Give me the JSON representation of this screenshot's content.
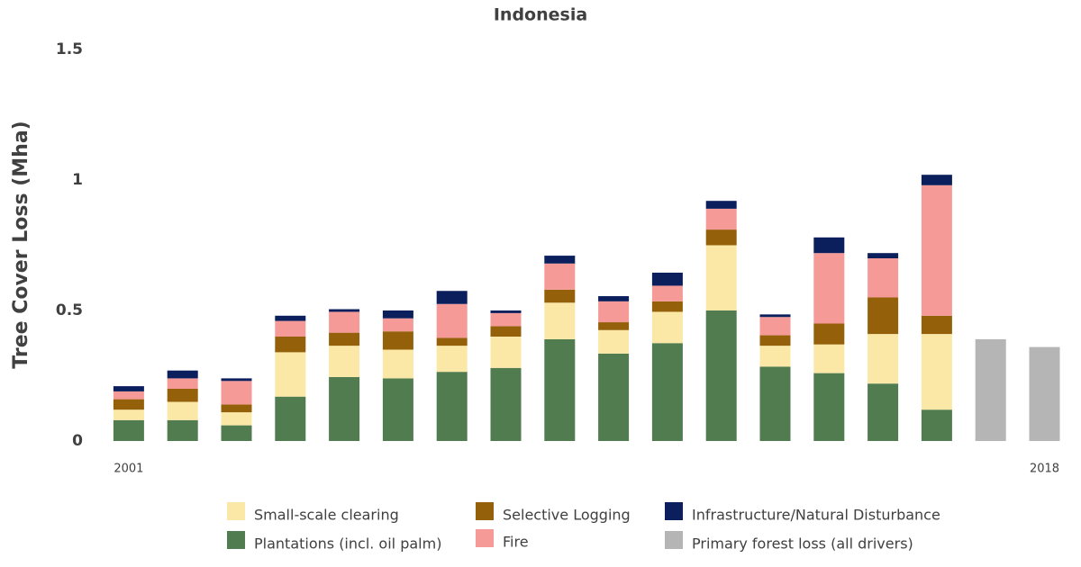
{
  "chart_data": {
    "type": "stacked_bar",
    "title": "Indonesia",
    "y_label": "Tree Cover Loss (Mha)",
    "categories": [
      "2001",
      null,
      null,
      null,
      null,
      null,
      null,
      null,
      null,
      null,
      null,
      null,
      null,
      null,
      null,
      null,
      null,
      "2018"
    ],
    "ylim": [
      0,
      1.5
    ],
    "yticks": [
      0,
      0.5,
      1,
      1.5
    ],
    "grid": false,
    "series": [
      {
        "name": "Plantations (incl. oil palm)",
        "color": "#507c4f",
        "values": [
          0.08,
          0.08,
          0.06,
          0.17,
          0.245,
          0.24,
          0.265,
          0.28,
          0.39,
          0.335,
          0.375,
          0.5,
          0.285,
          0.26,
          0.22,
          0.12,
          null,
          null
        ]
      },
      {
        "name": "Small-scale clearing",
        "color": "#fbe8a6",
        "values": [
          0.04,
          0.07,
          0.05,
          0.17,
          0.12,
          0.11,
          0.1,
          0.12,
          0.14,
          0.09,
          0.12,
          0.25,
          0.08,
          0.11,
          0.19,
          0.29,
          null,
          null
        ]
      },
      {
        "name": "Selective Logging",
        "color": "#94600a",
        "values": [
          0.04,
          0.05,
          0.03,
          0.06,
          0.05,
          0.07,
          0.03,
          0.04,
          0.05,
          0.03,
          0.04,
          0.06,
          0.04,
          0.08,
          0.14,
          0.07,
          null,
          null
        ]
      },
      {
        "name": "Fire",
        "color": "#f69a98",
        "values": [
          0.03,
          0.04,
          0.09,
          0.06,
          0.08,
          0.05,
          0.13,
          0.05,
          0.1,
          0.08,
          0.06,
          0.08,
          0.07,
          0.27,
          0.15,
          0.5,
          null,
          null
        ]
      },
      {
        "name": "Infrastructure/Natural Disturbance",
        "color": "#0b1f5c",
        "values": [
          0.02,
          0.03,
          0.01,
          0.02,
          0.01,
          0.03,
          0.05,
          0.01,
          0.03,
          0.02,
          0.05,
          0.03,
          0.01,
          0.06,
          0.02,
          0.04,
          null,
          null
        ]
      },
      {
        "name": "Primary forest loss (all drivers)",
        "color": "#b5b5b5",
        "values": [
          null,
          null,
          null,
          null,
          null,
          null,
          null,
          null,
          null,
          null,
          null,
          null,
          null,
          null,
          null,
          null,
          0.39,
          0.36
        ]
      }
    ]
  }
}
